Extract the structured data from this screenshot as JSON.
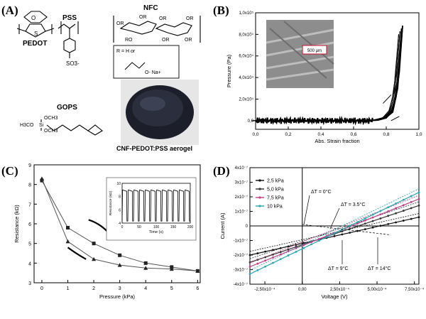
{
  "panels": {
    "A": {
      "letter": "(A)",
      "labels": {
        "pedot": "PEDOT",
        "pss": "PSS",
        "so3": "SO3-",
        "nfc": "NFC",
        "rdef": "R = H or",
        "na": "O- Na+",
        "gops": "GOPS",
        "gops_left": "H3CO",
        "gops_top": "OCH3",
        "gops_bottom": "OCH3",
        "photo_caption": "CNF-PEDOT:PSS aerogel"
      }
    },
    "B": {
      "letter": "(B)"
    },
    "C": {
      "letter": "(C)"
    },
    "D": {
      "letter": "(D)"
    }
  },
  "chart_data": [
    {
      "panel": "B",
      "type": "line",
      "xlabel": "Abs. Strain fraction",
      "ylabel": "Pressure (Pa)",
      "xlim": [
        0.0,
        1.0
      ],
      "ylim": [
        -8000.0,
        100000.0
      ],
      "x_ticks": [
        "0,0",
        "0,2",
        "0,4",
        "0,6",
        "0,8",
        "1,0"
      ],
      "y_ticks": [
        "0,0",
        "2,0x10⁴",
        "4,0x10⁴",
        "6,0x10⁴",
        "8,0x10⁴",
        "1,0x10⁵"
      ],
      "inset_scale_label": "500 μm",
      "series": [
        {
          "x": [
            0.0,
            0.2,
            0.4,
            0.6,
            0.7,
            0.75,
            0.8,
            0.84,
            0.87,
            0.9
          ],
          "y": [
            0,
            0,
            0,
            0,
            300,
            900,
            3000,
            8000,
            30000,
            88000
          ]
        },
        {
          "x": [
            0.9,
            0.88,
            0.86,
            0.84,
            0.8,
            0.75,
            0.7,
            0.6,
            0.4,
            0.2,
            0.0
          ],
          "y": [
            88000,
            45000,
            22000,
            10000,
            2500,
            500,
            0,
            0,
            0,
            0,
            0
          ]
        }
      ]
    },
    {
      "panel": "C",
      "type": "line",
      "xlabel": "Pressure (kPa)",
      "ylabel": "Resistance (kΩ)",
      "xlim": [
        -0.3,
        6.1
      ],
      "ylim": [
        3,
        9
      ],
      "x_ticks": [
        "0",
        "1",
        "2",
        "3",
        "4",
        "5",
        "6"
      ],
      "y_ticks": [
        "3",
        "4",
        "5",
        "6",
        "7",
        "8",
        "9"
      ],
      "series": [
        {
          "marker": "square",
          "x": [
            0,
            1,
            2,
            3,
            4,
            5,
            6
          ],
          "y": [
            8.2,
            5.8,
            5.0,
            4.4,
            4.0,
            3.8,
            3.6
          ]
        },
        {
          "marker": "triangle",
          "x": [
            0,
            1,
            2,
            3,
            4,
            5,
            6
          ],
          "y": [
            8.3,
            5.1,
            4.2,
            3.9,
            3.75,
            3.7,
            3.6
          ]
        }
      ],
      "inset": {
        "type": "line",
        "xlabel": "Time (s)",
        "ylabel": "Resistance (kΩ)",
        "xlim": [
          0,
          200
        ],
        "ylim": [
          4,
          10
        ],
        "x_ticks": [
          "0",
          "50",
          "100",
          "150",
          "200"
        ],
        "y_ticks": [
          "4",
          "6",
          "8",
          "10"
        ],
        "cycles": 12,
        "high": 9.0,
        "low": 4.3
      }
    },
    {
      "panel": "D",
      "type": "line",
      "xlabel": "Voltage (V)",
      "ylabel": "Current (A)",
      "xlim": [
        -0.00035,
        0.00078
      ],
      "ylim": [
        -4e-07,
        4e-07
      ],
      "x_ticks": [
        "-2,50x10⁻⁴",
        "0,00",
        "2,50x10⁻⁴",
        "5,00x10⁻⁴",
        "7,50x10⁻⁴"
      ],
      "y_ticks": [
        "-4x10⁻⁷",
        "-3x10⁻⁷",
        "-2x10⁻⁷",
        "-1x10⁻⁷",
        "0",
        "1x10⁻⁷",
        "2x10⁻⁷",
        "3x10⁻⁷",
        "4x10⁻⁷"
      ],
      "series": [
        {
          "name": "2,5 kPa",
          "color": "#111111",
          "x": [
            -0.00035,
            0.00078
          ],
          "y": [
            -2e-07,
            6e-08
          ]
        },
        {
          "name": "5,0 kPa",
          "color": "#333333",
          "x": [
            -0.00035,
            0.00078
          ],
          "y": [
            -2.5e-07,
            1.4e-07
          ]
        },
        {
          "name": "7,5 kPa",
          "color": "#c2408a",
          "x": [
            -0.00035,
            0.00078
          ],
          "y": [
            -2.8e-07,
            1.85e-07
          ]
        },
        {
          "name": "10 kPa",
          "color": "#2aa6b0",
          "x": [
            -0.00035,
            0.00078
          ],
          "y": [
            -3.3e-07,
            2.3e-07
          ]
        }
      ],
      "annotations": [
        "ΔT = 0°C",
        "ΔT = 3.5°C",
        "ΔT = 9°C",
        "ΔT = 14°C"
      ]
    }
  ]
}
